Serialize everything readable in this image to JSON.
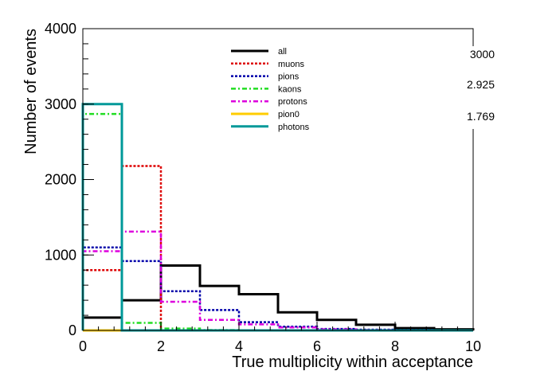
{
  "chart_data": {
    "type": "histogram",
    "xlabel": "True multiplicity within acceptance",
    "ylabel": "Number of events",
    "xlim": [
      0,
      10
    ],
    "ylim": [
      0,
      4000
    ],
    "x_ticks": [
      "0",
      "2",
      "4",
      "6",
      "8",
      "10"
    ],
    "y_ticks": [
      "0",
      "1000",
      "2000",
      "3000",
      "4000"
    ],
    "bin_edges": [
      0,
      1,
      2,
      3,
      4,
      5,
      6,
      7,
      8,
      9,
      10
    ],
    "series": [
      {
        "name": "all",
        "color": "#000000",
        "dash": "solid",
        "width": 3,
        "values": [
          170,
          400,
          860,
          590,
          480,
          240,
          140,
          75,
          30,
          15
        ]
      },
      {
        "name": "muons",
        "color": "#dd0000",
        "dash": "dotted",
        "width": 2.5,
        "values": [
          800,
          2180,
          0,
          0,
          0,
          0,
          0,
          0,
          0,
          0
        ]
      },
      {
        "name": "pions",
        "color": "#0000aa",
        "dash": "dotted",
        "width": 2.5,
        "values": [
          1100,
          920,
          520,
          270,
          110,
          50,
          20,
          10,
          5,
          3
        ]
      },
      {
        "name": "kaons",
        "color": "#22dd22",
        "dash": "dashdot",
        "width": 2.5,
        "values": [
          2870,
          100,
          25,
          5,
          0,
          0,
          0,
          0,
          0,
          0
        ]
      },
      {
        "name": "protons",
        "color": "#dd00dd",
        "dash": "dashdot",
        "width": 2.5,
        "values": [
          1050,
          1310,
          380,
          140,
          80,
          40,
          15,
          5,
          0,
          0
        ]
      },
      {
        "name": "pion0",
        "color": "#ffcc00",
        "dash": "solid",
        "width": 3,
        "values": [
          0,
          0,
          0,
          0,
          0,
          0,
          0,
          0,
          0,
          0
        ]
      },
      {
        "name": "photons",
        "color": "#009999",
        "dash": "solid",
        "width": 3,
        "values": [
          3000,
          0,
          0,
          0,
          0,
          0,
          0,
          0,
          0,
          0
        ]
      }
    ],
    "legend_position": "top-right",
    "side_values": [
      "3000",
      "2.925",
      "1.769"
    ]
  }
}
